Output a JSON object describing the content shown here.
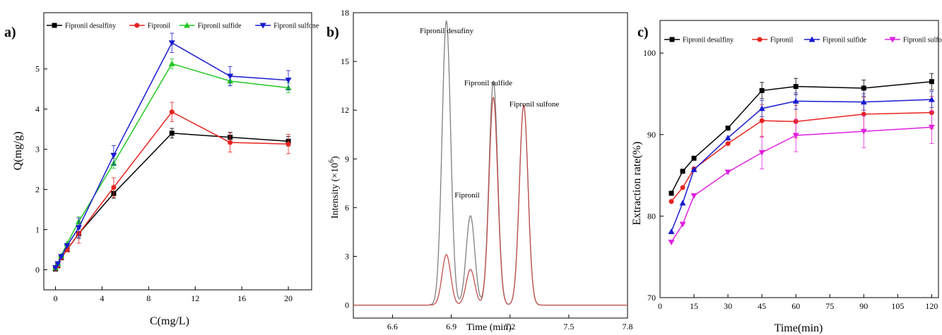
{
  "panel_labels": [
    "a)",
    "b)",
    "c)"
  ],
  "chart_data": [
    {
      "type": "line",
      "panel": "a)",
      "xlabel": "C(mg/L)",
      "ylabel": "Q(mg/g)",
      "xlim": [
        -1,
        22
      ],
      "ylim": [
        -0.5,
        6.4
      ],
      "xticks": [
        "0",
        "4",
        "8",
        "12",
        "16",
        "20"
      ],
      "yticks": [
        "0",
        "1",
        "2",
        "3",
        "4",
        "5"
      ],
      "legend_position": "top",
      "x": [
        0,
        0.2,
        0.5,
        1,
        2,
        5,
        10,
        15,
        20
      ],
      "series": [
        {
          "name": "Fipronil desulfiny",
          "color": "#000000",
          "marker": "square",
          "values": [
            0.02,
            0.1,
            0.3,
            0.5,
            0.9,
            1.9,
            3.4,
            3.3,
            3.2
          ]
        },
        {
          "name": "Fipronil",
          "color": "#e8231f",
          "marker": "circle",
          "values": [
            0.03,
            0.1,
            0.3,
            0.5,
            0.9,
            2.05,
            3.93,
            3.17,
            3.13
          ]
        },
        {
          "name": "Fipronil sulfide",
          "color": "#22c822",
          "marker": "triangle-up",
          "values": [
            0.05,
            0.15,
            0.35,
            0.65,
            1.2,
            2.65,
            5.13,
            4.7,
            4.53
          ]
        },
        {
          "name": "Fipronil  sulfone",
          "color": "#1a1ad0",
          "marker": "triangle-down",
          "values": [
            0.05,
            0.15,
            0.33,
            0.6,
            1.05,
            2.85,
            5.65,
            4.82,
            4.72
          ]
        }
      ]
    },
    {
      "type": "line",
      "panel": "b)",
      "xlabel": "Time (min)",
      "ylabel": "Intensity (×10",
      "ylabel_sup": "6",
      "ylabel_close": ")",
      "xlim": [
        6.4,
        7.8
      ],
      "ylim": [
        -0.8,
        18
      ],
      "xticks": [
        "6.6",
        "6.9",
        "7.2",
        "7.5",
        "7.8"
      ],
      "yticks": [
        "0",
        "3",
        "6",
        "9",
        "12",
        "15",
        "18"
      ],
      "annotations": [
        "Fipronil desufiny",
        "Fipronil",
        "Fipronil sulfide",
        "Fipronil sulfone"
      ],
      "series": [
        {
          "color": "#808080",
          "peaks": [
            {
              "rt": 6.875,
              "height": 17.5
            },
            {
              "rt": 6.998,
              "height": 5.5
            },
            {
              "rt": 7.115,
              "height": 13.8
            },
            {
              "rt": 7.27,
              "height": 12.3
            }
          ]
        },
        {
          "color": "#c0504d",
          "peaks": [
            {
              "rt": 6.875,
              "height": 3.1
            },
            {
              "rt": 6.998,
              "height": 2.2
            },
            {
              "rt": 7.115,
              "height": 12.8
            },
            {
              "rt": 7.27,
              "height": 12.3
            }
          ]
        }
      ]
    },
    {
      "type": "line",
      "panel": "c)",
      "xlabel": "Time(min)",
      "ylabel": "Extraction rate(%)",
      "xlim": [
        0,
        123
      ],
      "ylim": [
        70,
        104
      ],
      "xticks": [
        "0",
        "15",
        "30",
        "45",
        "60",
        "75",
        "90",
        "105",
        "120"
      ],
      "yticks": [
        "70",
        "80",
        "90",
        "100"
      ],
      "legend_position": "top",
      "x": [
        5,
        10,
        15,
        30,
        45,
        60,
        90,
        120
      ],
      "series": [
        {
          "name": "Fipronil desulfiny",
          "color": "#000000",
          "marker": "square",
          "values": [
            82.8,
            85.5,
            87.1,
            90.8,
            95.4,
            95.9,
            95.7,
            96.5
          ]
        },
        {
          "name": "Fipronil",
          "color": "#e8231f",
          "marker": "circle",
          "values": [
            81.8,
            83.5,
            85.8,
            88.9,
            91.7,
            91.6,
            92.5,
            92.7
          ]
        },
        {
          "name": "Fipronil sulfide",
          "color": "#1a1ad0",
          "marker": "triangle-up",
          "values": [
            78.1,
            81.6,
            85.7,
            89.6,
            93.2,
            94.1,
            94.0,
            94.3
          ]
        },
        {
          "name": "Fipronil sulfone",
          "color": "#e020e0",
          "marker": "triangle-down",
          "values": [
            76.8,
            79.0,
            82.5,
            85.4,
            87.8,
            89.9,
            90.4,
            90.9
          ]
        }
      ]
    }
  ]
}
